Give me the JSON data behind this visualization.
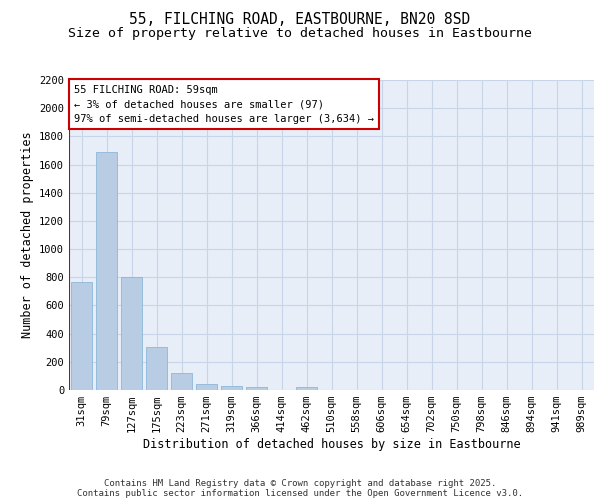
{
  "title_line1": "55, FILCHING ROAD, EASTBOURNE, BN20 8SD",
  "title_line2": "Size of property relative to detached houses in Eastbourne",
  "xlabel": "Distribution of detached houses by size in Eastbourne",
  "ylabel": "Number of detached properties",
  "categories": [
    "31sqm",
    "79sqm",
    "127sqm",
    "175sqm",
    "223sqm",
    "271sqm",
    "319sqm",
    "366sqm",
    "414sqm",
    "462sqm",
    "510sqm",
    "558sqm",
    "606sqm",
    "654sqm",
    "702sqm",
    "750sqm",
    "798sqm",
    "846sqm",
    "894sqm",
    "941sqm",
    "989sqm"
  ],
  "values": [
    770,
    1690,
    800,
    305,
    120,
    40,
    28,
    18,
    0,
    18,
    0,
    0,
    0,
    0,
    0,
    0,
    0,
    0,
    0,
    0,
    0
  ],
  "bar_color": "#b8cce4",
  "bar_edge_color": "#7fafd6",
  "grid_color": "#c8d4e8",
  "bg_color": "#e8eef8",
  "annotation_text": "55 FILCHING ROAD: 59sqm\n← 3% of detached houses are smaller (97)\n97% of semi-detached houses are larger (3,634) →",
  "annotation_box_color": "#ffffff",
  "annotation_box_edge": "#cc0000",
  "vline_color": "#cc0000",
  "ylim": [
    0,
    2200
  ],
  "yticks": [
    0,
    200,
    400,
    600,
    800,
    1000,
    1200,
    1400,
    1600,
    1800,
    2000,
    2200
  ],
  "footer_line1": "Contains HM Land Registry data © Crown copyright and database right 2025.",
  "footer_line2": "Contains public sector information licensed under the Open Government Licence v3.0.",
  "title_fontsize": 10.5,
  "subtitle_fontsize": 9.5,
  "axis_label_fontsize": 8.5,
  "tick_fontsize": 7.5,
  "annotation_fontsize": 7.5,
  "footer_fontsize": 6.5
}
